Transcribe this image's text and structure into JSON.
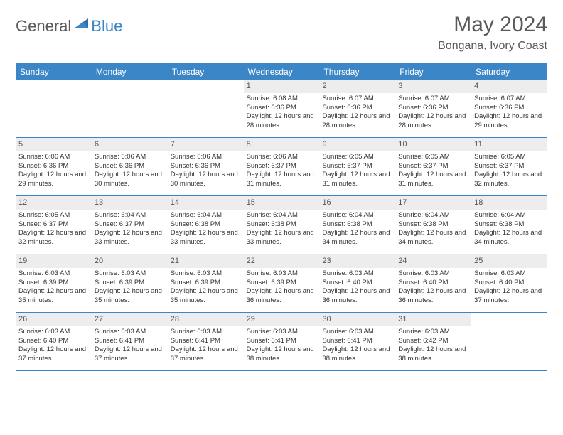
{
  "logo": {
    "text1": "General",
    "text2": "Blue"
  },
  "title": "May 2024",
  "location": "Bongana, Ivory Coast",
  "colors": {
    "accent": "#3b86c6",
    "headerText": "#5a5a5a",
    "dayNumBg": "#ededed",
    "bodyText": "#333333",
    "background": "#ffffff"
  },
  "dayHeaders": [
    "Sunday",
    "Monday",
    "Tuesday",
    "Wednesday",
    "Thursday",
    "Friday",
    "Saturday"
  ],
  "weeks": [
    [
      {
        "num": "",
        "lines": []
      },
      {
        "num": "",
        "lines": []
      },
      {
        "num": "",
        "lines": []
      },
      {
        "num": "1",
        "lines": [
          "Sunrise: 6:08 AM",
          "Sunset: 6:36 PM",
          "Daylight: 12 hours and 28 minutes."
        ]
      },
      {
        "num": "2",
        "lines": [
          "Sunrise: 6:07 AM",
          "Sunset: 6:36 PM",
          "Daylight: 12 hours and 28 minutes."
        ]
      },
      {
        "num": "3",
        "lines": [
          "Sunrise: 6:07 AM",
          "Sunset: 6:36 PM",
          "Daylight: 12 hours and 28 minutes."
        ]
      },
      {
        "num": "4",
        "lines": [
          "Sunrise: 6:07 AM",
          "Sunset: 6:36 PM",
          "Daylight: 12 hours and 29 minutes."
        ]
      }
    ],
    [
      {
        "num": "5",
        "lines": [
          "Sunrise: 6:06 AM",
          "Sunset: 6:36 PM",
          "Daylight: 12 hours and 29 minutes."
        ]
      },
      {
        "num": "6",
        "lines": [
          "Sunrise: 6:06 AM",
          "Sunset: 6:36 PM",
          "Daylight: 12 hours and 30 minutes."
        ]
      },
      {
        "num": "7",
        "lines": [
          "Sunrise: 6:06 AM",
          "Sunset: 6:36 PM",
          "Daylight: 12 hours and 30 minutes."
        ]
      },
      {
        "num": "8",
        "lines": [
          "Sunrise: 6:06 AM",
          "Sunset: 6:37 PM",
          "Daylight: 12 hours and 31 minutes."
        ]
      },
      {
        "num": "9",
        "lines": [
          "Sunrise: 6:05 AM",
          "Sunset: 6:37 PM",
          "Daylight: 12 hours and 31 minutes."
        ]
      },
      {
        "num": "10",
        "lines": [
          "Sunrise: 6:05 AM",
          "Sunset: 6:37 PM",
          "Daylight: 12 hours and 31 minutes."
        ]
      },
      {
        "num": "11",
        "lines": [
          "Sunrise: 6:05 AM",
          "Sunset: 6:37 PM",
          "Daylight: 12 hours and 32 minutes."
        ]
      }
    ],
    [
      {
        "num": "12",
        "lines": [
          "Sunrise: 6:05 AM",
          "Sunset: 6:37 PM",
          "Daylight: 12 hours and 32 minutes."
        ]
      },
      {
        "num": "13",
        "lines": [
          "Sunrise: 6:04 AM",
          "Sunset: 6:37 PM",
          "Daylight: 12 hours and 33 minutes."
        ]
      },
      {
        "num": "14",
        "lines": [
          "Sunrise: 6:04 AM",
          "Sunset: 6:38 PM",
          "Daylight: 12 hours and 33 minutes."
        ]
      },
      {
        "num": "15",
        "lines": [
          "Sunrise: 6:04 AM",
          "Sunset: 6:38 PM",
          "Daylight: 12 hours and 33 minutes."
        ]
      },
      {
        "num": "16",
        "lines": [
          "Sunrise: 6:04 AM",
          "Sunset: 6:38 PM",
          "Daylight: 12 hours and 34 minutes."
        ]
      },
      {
        "num": "17",
        "lines": [
          "Sunrise: 6:04 AM",
          "Sunset: 6:38 PM",
          "Daylight: 12 hours and 34 minutes."
        ]
      },
      {
        "num": "18",
        "lines": [
          "Sunrise: 6:04 AM",
          "Sunset: 6:38 PM",
          "Daylight: 12 hours and 34 minutes."
        ]
      }
    ],
    [
      {
        "num": "19",
        "lines": [
          "Sunrise: 6:03 AM",
          "Sunset: 6:39 PM",
          "Daylight: 12 hours and 35 minutes."
        ]
      },
      {
        "num": "20",
        "lines": [
          "Sunrise: 6:03 AM",
          "Sunset: 6:39 PM",
          "Daylight: 12 hours and 35 minutes."
        ]
      },
      {
        "num": "21",
        "lines": [
          "Sunrise: 6:03 AM",
          "Sunset: 6:39 PM",
          "Daylight: 12 hours and 35 minutes."
        ]
      },
      {
        "num": "22",
        "lines": [
          "Sunrise: 6:03 AM",
          "Sunset: 6:39 PM",
          "Daylight: 12 hours and 36 minutes."
        ]
      },
      {
        "num": "23",
        "lines": [
          "Sunrise: 6:03 AM",
          "Sunset: 6:40 PM",
          "Daylight: 12 hours and 36 minutes."
        ]
      },
      {
        "num": "24",
        "lines": [
          "Sunrise: 6:03 AM",
          "Sunset: 6:40 PM",
          "Daylight: 12 hours and 36 minutes."
        ]
      },
      {
        "num": "25",
        "lines": [
          "Sunrise: 6:03 AM",
          "Sunset: 6:40 PM",
          "Daylight: 12 hours and 37 minutes."
        ]
      }
    ],
    [
      {
        "num": "26",
        "lines": [
          "Sunrise: 6:03 AM",
          "Sunset: 6:40 PM",
          "Daylight: 12 hours and 37 minutes."
        ]
      },
      {
        "num": "27",
        "lines": [
          "Sunrise: 6:03 AM",
          "Sunset: 6:41 PM",
          "Daylight: 12 hours and 37 minutes."
        ]
      },
      {
        "num": "28",
        "lines": [
          "Sunrise: 6:03 AM",
          "Sunset: 6:41 PM",
          "Daylight: 12 hours and 37 minutes."
        ]
      },
      {
        "num": "29",
        "lines": [
          "Sunrise: 6:03 AM",
          "Sunset: 6:41 PM",
          "Daylight: 12 hours and 38 minutes."
        ]
      },
      {
        "num": "30",
        "lines": [
          "Sunrise: 6:03 AM",
          "Sunset: 6:41 PM",
          "Daylight: 12 hours and 38 minutes."
        ]
      },
      {
        "num": "31",
        "lines": [
          "Sunrise: 6:03 AM",
          "Sunset: 6:42 PM",
          "Daylight: 12 hours and 38 minutes."
        ]
      },
      {
        "num": "",
        "lines": []
      }
    ]
  ]
}
